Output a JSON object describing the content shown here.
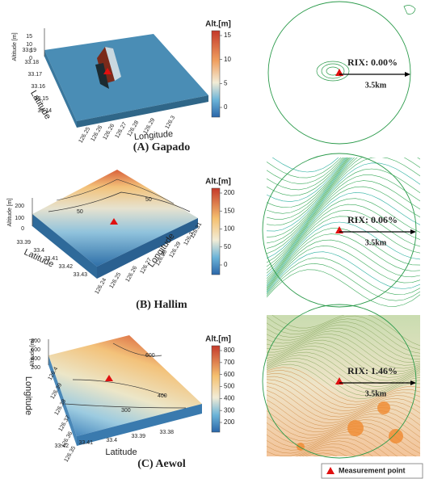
{
  "panels": [
    {
      "caption": "(A) Gapado",
      "altitude_label": "Altitude [m]",
      "latitude_label": "Latitude",
      "longitude_label": "Longitude",
      "altitude_ticks": [
        "15",
        "10",
        "5",
        "0"
      ],
      "latitude_ticks": [
        "33.19",
        "33.18",
        "33.17",
        "33.16",
        "33.15",
        "33.14"
      ],
      "longitude_ticks": [
        "126.25",
        "126.26",
        "126.26",
        "126.27",
        "126.28",
        "126.29",
        "126.3"
      ],
      "colorbar_title": "Alt.[m]",
      "colorbar_ticks": [
        "15",
        "10",
        "5",
        "0"
      ],
      "contour_labels": [],
      "rix": "RIX: 0.00%",
      "distance": "3.5km"
    },
    {
      "caption": "(B) Hallim",
      "altitude_label": "Altitude [m]",
      "latitude_label": "Latitude",
      "longitude_label": "Longitude",
      "altitude_ticks": [
        "200",
        "100",
        "0"
      ],
      "latitude_ticks": [
        "33.39",
        "33.4",
        "33.41",
        "33.42",
        "33.43"
      ],
      "longitude_ticks": [
        "126.24",
        "126.25",
        "126.26",
        "126.27",
        "126.28",
        "126.29",
        "126.3",
        "126.31"
      ],
      "colorbar_title": "Alt.[m]",
      "colorbar_ticks": [
        "200",
        "150",
        "100",
        "50",
        "0"
      ],
      "contour_labels": [
        "50",
        "50"
      ],
      "rix": "RIX: 0.06%",
      "distance": "3.5km"
    },
    {
      "caption": "(C) Aewol",
      "altitude_label": "Altitude [m]",
      "latitude_label": "Latitude",
      "longitude_label": "Longitude",
      "altitude_ticks": [
        "800",
        "600",
        "400",
        "200"
      ],
      "latitude_ticks": [
        "33.42",
        "33.41",
        "33.4",
        "33.39",
        "33.38"
      ],
      "longitude_ticks": [
        "126.4",
        "126.39",
        "126.38",
        "126.37",
        "126.36",
        "126.35"
      ],
      "colorbar_title": "Alt.[m]",
      "colorbar_ticks": [
        "800",
        "700",
        "600",
        "500",
        "400",
        "300",
        "200"
      ],
      "contour_labels": [
        "600",
        "400",
        "300"
      ],
      "rix": "RIX: 1.46%",
      "distance": "3.5km"
    }
  ],
  "legend": {
    "label": "Measurement point"
  }
}
